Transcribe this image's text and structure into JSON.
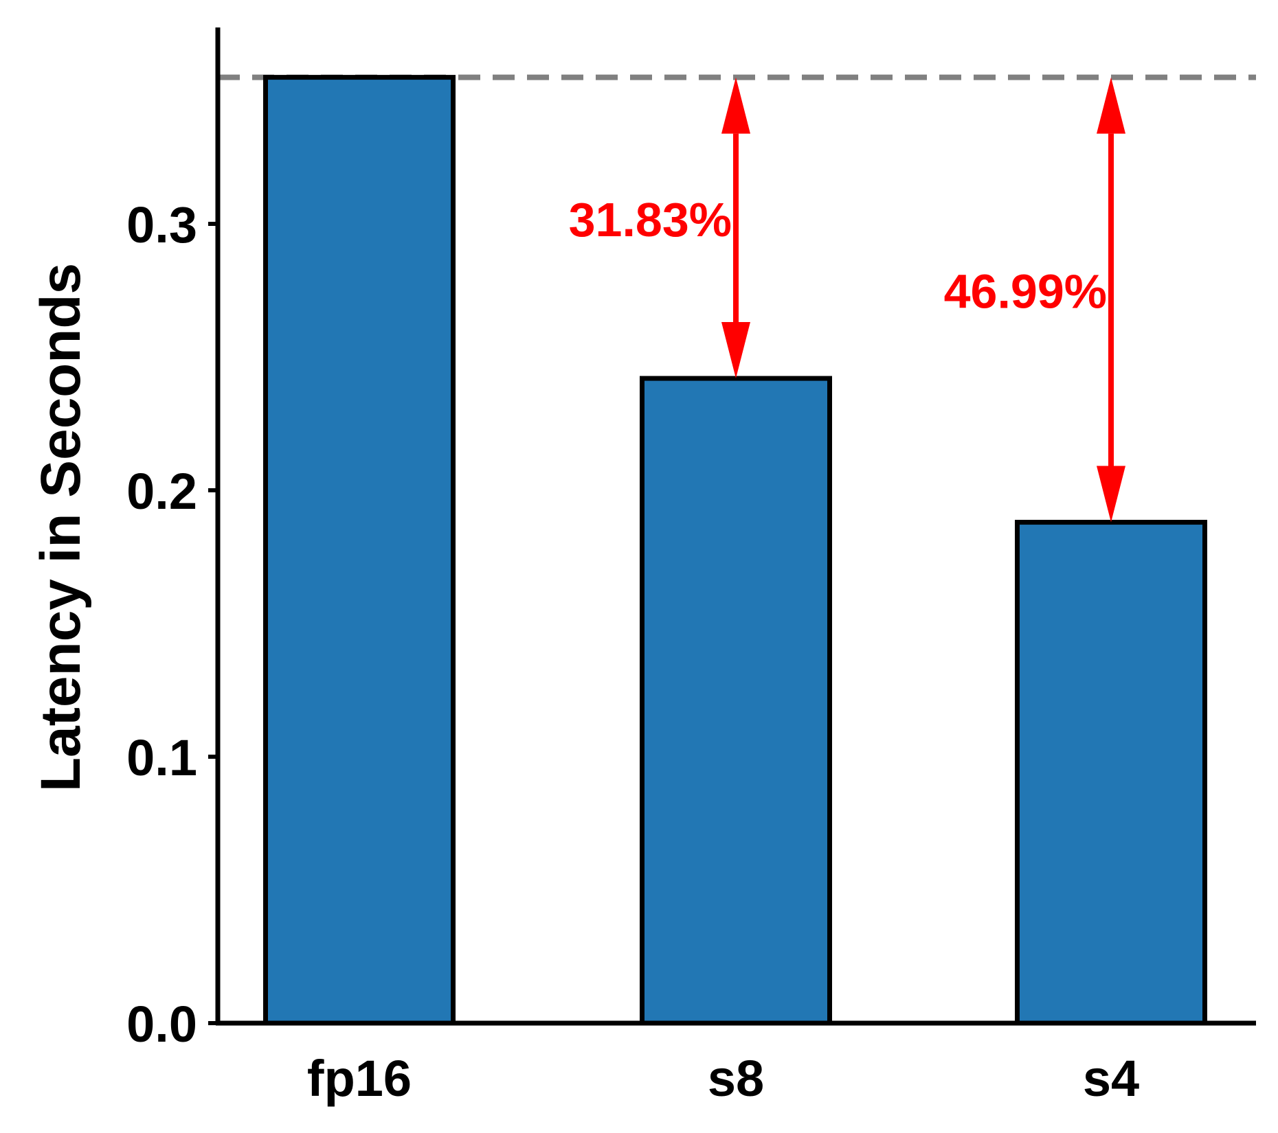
{
  "chart_data": {
    "type": "bar",
    "categories": [
      "fp16",
      "s8",
      "s4"
    ],
    "values": [
      0.355,
      0.242,
      0.188
    ],
    "ylabel": "Latency in Seconds",
    "xlabel": "",
    "ylim": [
      0,
      0.37
    ],
    "yticks": [
      0.0,
      0.1,
      0.2,
      0.3
    ],
    "ytick_labels": [
      "0.0",
      "0.1",
      "0.2",
      "0.3"
    ],
    "grid": false,
    "reference_line": {
      "value": 0.355,
      "style": "dashed"
    },
    "annotations": [
      {
        "category": "s8",
        "text": "31.83%"
      },
      {
        "category": "s4",
        "text": "46.99%"
      }
    ]
  },
  "colors": {
    "bar_fill": "#2277b4",
    "bar_edge": "#000000",
    "reference_line": "#808080",
    "annotation": "#ff0000"
  }
}
